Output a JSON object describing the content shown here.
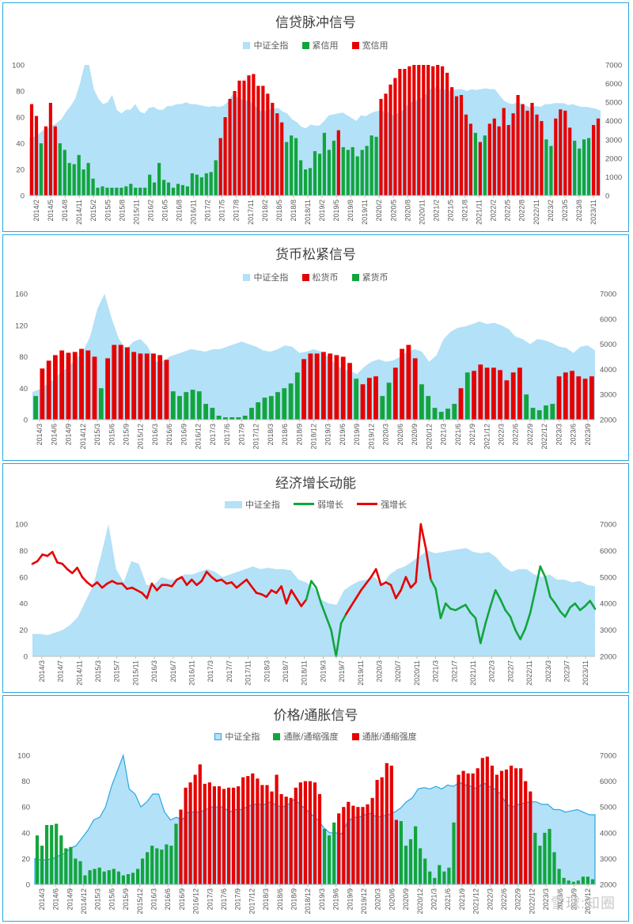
{
  "colors": {
    "area": "#b3e1f7",
    "areaStroke": "#29a8e0",
    "red": "#e60000",
    "green": "#12a53c"
  },
  "watermark": "雪球:知圈",
  "chart_data": [
    {
      "type": "bar",
      "title": "信贷脉冲信号",
      "legend": [
        "中证全指",
        "紧信用",
        "宽信用"
      ],
      "y_left": [
        0,
        100
      ],
      "y_left_ticks": [
        0,
        20,
        40,
        60,
        80,
        100
      ],
      "y_right": [
        0,
        7000
      ],
      "y_right_ticks": [
        0,
        1000,
        2000,
        3000,
        4000,
        5000,
        6000,
        7000
      ],
      "x_tick_labels": [
        "2014/2",
        "2014/5",
        "2014/8",
        "2014/11",
        "2015/2",
        "2015/5",
        "2015/8",
        "2015/11",
        "2016/2",
        "2016/5",
        "2016/8",
        "2016/11",
        "2017/2",
        "2017/5",
        "2017/8",
        "2017/11",
        "2018/2",
        "2018/5",
        "2018/8",
        "2018/11",
        "2019/2",
        "2019/5",
        "2019/8",
        "2019/11",
        "2020/2",
        "2020/5",
        "2020/8",
        "2020/11",
        "2021/2",
        "2021/5",
        "2021/8",
        "2021/11",
        "2022/2",
        "2022/5",
        "2022/8",
        "2022/11",
        "2023/2",
        "2023/5",
        "2023/8",
        "2023/11"
      ],
      "series_area": {
        "name": "中证全指",
        "values": [
          3100,
          3150,
          3300,
          3500,
          3600,
          3750,
          3900,
          4100,
          4500,
          4800,
          5200,
          6000,
          7000,
          7050,
          5700,
          5200,
          4900,
          5000,
          5400,
          4600,
          4400,
          4600,
          4600,
          4900,
          4500,
          4400,
          4700,
          4750,
          4600,
          4600,
          4800,
          4800,
          4900,
          4900,
          5000,
          4900,
          4900,
          4850,
          4800,
          4750,
          4800,
          4750,
          4800,
          5000,
          5400,
          5300,
          5150,
          5100,
          5000,
          4800,
          4550,
          4500,
          4600,
          4650,
          4700,
          4500,
          4400,
          4100,
          3950,
          3700,
          3600,
          3800,
          3750,
          3750,
          4000,
          4300,
          4350,
          4400,
          4450,
          4300,
          4150,
          4000,
          4300,
          4250,
          4400,
          4500,
          4550,
          4500,
          4450,
          4300,
          4400,
          4550,
          4850,
          5000,
          5100,
          5200,
          5400,
          5700,
          5800,
          5700,
          5700,
          5600,
          5650,
          5700,
          5700,
          5600,
          5700,
          5650,
          5700,
          5750,
          5700,
          5700,
          5400,
          5100,
          4950,
          4900,
          5000,
          4900,
          4800,
          4700,
          4800,
          4750,
          4900,
          4900,
          4950,
          4950,
          4950,
          4850,
          4900,
          4800,
          4750,
          4750,
          4700,
          4650,
          4550
        ]
      },
      "bars": [
        70,
        61,
        40,
        53,
        71,
        53,
        40,
        35,
        25,
        24,
        31,
        20,
        25,
        13,
        6,
        7,
        6,
        6,
        6,
        6,
        7,
        9,
        6,
        6,
        6,
        16,
        10,
        25,
        12,
        10,
        6,
        9,
        8,
        7,
        17,
        16,
        14,
        17,
        18,
        27,
        44,
        60,
        74,
        80,
        88,
        88,
        92,
        93,
        84,
        84,
        78,
        71,
        63,
        56,
        41,
        46,
        44,
        27,
        20,
        21,
        34,
        32,
        48,
        35,
        42,
        50,
        37,
        35,
        37,
        30,
        35,
        38,
        46,
        45,
        74,
        78,
        85,
        90,
        97,
        97,
        99,
        100,
        100,
        100,
        100,
        99,
        100,
        99,
        94,
        83,
        76,
        77,
        62,
        55,
        48,
        41,
        46,
        55,
        59,
        53,
        67,
        54,
        63,
        77,
        70,
        65,
        71,
        62,
        57,
        43,
        38,
        59,
        66,
        65,
        52,
        42,
        36,
        43,
        44,
        54,
        59
      ],
      "bar_series": {
        "red_on": [
          0,
          1,
          3,
          4,
          5,
          40,
          41,
          42,
          43,
          44,
          45,
          46,
          47,
          48,
          49,
          50,
          51,
          52,
          53,
          65,
          74,
          75,
          76,
          77,
          78,
          79,
          80,
          81,
          82,
          83,
          84,
          85,
          86,
          87,
          88,
          89,
          90,
          91,
          92,
          93,
          95,
          97,
          98,
          99,
          100,
          101,
          102,
          103,
          104,
          105,
          106,
          107,
          108,
          111,
          112,
          113,
          114,
          119,
          120
        ]
      }
    },
    {
      "type": "bar",
      "title": "货币松紧信号",
      "legend": [
        "中证全指",
        "松货币",
        "紧货币"
      ],
      "y_left": [
        0,
        160
      ],
      "y_left_ticks": [
        0,
        40,
        80,
        120,
        160
      ],
      "y_right": [
        2000,
        7000
      ],
      "y_right_ticks": [
        2000,
        3000,
        4000,
        5000,
        6000,
        7000
      ],
      "x_tick_labels": [
        "2014/3",
        "2014/6",
        "2014/9",
        "2014/12",
        "2015/3",
        "2015/6",
        "2015/9",
        "2015/12",
        "2016/3",
        "2016/6",
        "2016/9",
        "2016/12",
        "2017/3",
        "2017/6",
        "2017/9",
        "2017/12",
        "2018/3",
        "2018/6",
        "2018/9",
        "2018/12",
        "2019/3",
        "2019/6",
        "2019/9",
        "2019/12",
        "2020/3",
        "2020/6",
        "2020/9",
        "2020/12",
        "2021/3",
        "2021/6",
        "2021/9",
        "2021/12",
        "2022/3",
        "2022/6",
        "2022/9",
        "2022/12",
        "2023/3",
        "2023/6",
        "2023/9"
      ],
      "series_area": {
        "name": "中证全指",
        "values": [
          3100,
          3200,
          3400,
          3600,
          3900,
          4100,
          4400,
          4700,
          5300,
          6400,
          7000,
          6000,
          5200,
          4800,
          5100,
          5200,
          4900,
          4300,
          4300,
          4500,
          4600,
          4700,
          4800,
          4750,
          4700,
          4800,
          4800,
          4900,
          5000,
          5100,
          5000,
          4900,
          4750,
          4700,
          4800,
          4950,
          4900,
          4650,
          4700,
          4800,
          4700,
          4500,
          4200,
          4000,
          3950,
          3800,
          4100,
          4300,
          4400,
          4300,
          4350,
          4500,
          4700,
          4800,
          4700,
          4300,
          4550,
          5200,
          5500,
          5650,
          5700,
          5800,
          5900,
          5800,
          5850,
          5750,
          5600,
          5300,
          5200,
          5000,
          5200,
          5150,
          5050,
          4900,
          4850,
          4650,
          4900,
          4950,
          4750
        ]
      },
      "bars": [
        30,
        65,
        75,
        82,
        88,
        85,
        86,
        90,
        88,
        80,
        40,
        78,
        95,
        95,
        92,
        86,
        84,
        84,
        84,
        82,
        76,
        36,
        30,
        35,
        38,
        36,
        20,
        15,
        5,
        3,
        3,
        3,
        5,
        15,
        22,
        28,
        30,
        35,
        40,
        46,
        60,
        77,
        84,
        84,
        86,
        84,
        82,
        80,
        72,
        52,
        45,
        53,
        55,
        30,
        47,
        66,
        90,
        95,
        78,
        45,
        30,
        15,
        10,
        14,
        20,
        40,
        60,
        62,
        70,
        66,
        66,
        63,
        50,
        60,
        66,
        32,
        15,
        12,
        18,
        20,
        55,
        60,
        62,
        55,
        52,
        55
      ],
      "bar_series": {
        "red_on": [
          1,
          2,
          3,
          4,
          5,
          6,
          7,
          8,
          9,
          11,
          12,
          13,
          14,
          15,
          16,
          17,
          18,
          19,
          20,
          41,
          42,
          43,
          44,
          45,
          46,
          47,
          48,
          50,
          51,
          52,
          55,
          56,
          57,
          58,
          65,
          67,
          68,
          69,
          70,
          71,
          72,
          73,
          74,
          80,
          81,
          82,
          83,
          84,
          85
        ]
      }
    },
    {
      "type": "line",
      "title": "经济增长动能",
      "legend": [
        "中证全指",
        "弱增长",
        "强增长"
      ],
      "y_left": [
        0,
        100
      ],
      "y_left_ticks": [
        0,
        20,
        40,
        60,
        80,
        100
      ],
      "y_right": [
        2000,
        7000
      ],
      "y_right_ticks": [
        2000,
        3000,
        4000,
        5000,
        6000,
        7000
      ],
      "x_tick_labels": [
        "2014/3",
        "2014/7",
        "2014/11",
        "2015/3",
        "2015/7",
        "2015/11",
        "2016/3",
        "2016/7",
        "2016/11",
        "2017/3",
        "2017/7",
        "2017/11",
        "2018/3",
        "2018/7",
        "2018/11",
        "2019/3",
        "2019/7",
        "2019/11",
        "2020/3",
        "2020/7",
        "2020/11",
        "2021/3",
        "2021/7",
        "2021/11",
        "2022/3",
        "2022/7",
        "2022/11",
        "2023/3",
        "2023/7",
        "2023/11"
      ],
      "series_area": {
        "name": "中证全指",
        "values": [
          2850,
          2850,
          2800,
          2900,
          3000,
          3200,
          3500,
          4100,
          4700,
          5800,
          7000,
          5300,
          4800,
          5600,
          5500,
          4700,
          4700,
          5000,
          4900,
          4900,
          5100,
          5100,
          5200,
          5300,
          5200,
          5000,
          5100,
          5200,
          5300,
          5400,
          5300,
          5350,
          5300,
          5300,
          5250,
          4900,
          4800,
          4600,
          4150,
          4000,
          3950,
          4500,
          4700,
          4850,
          4900,
          5000,
          4700,
          5100,
          5300,
          5400,
          5600,
          5800,
          6000,
          5900,
          5950,
          6000,
          6050,
          6100,
          5950,
          5900,
          5950,
          5750,
          5400,
          5200,
          5300,
          5300,
          5100,
          5000,
          5100,
          4900,
          4900,
          4800,
          4850,
          4700,
          4650
        ]
      },
      "line": [
        70,
        72,
        77,
        76,
        79,
        71,
        70,
        66,
        63,
        67,
        60,
        56,
        53,
        56,
        52,
        55,
        57,
        55,
        55,
        51,
        52,
        50,
        48,
        44,
        55,
        50,
        54,
        54,
        53,
        58,
        60,
        54,
        58,
        54,
        57,
        64,
        60,
        57,
        58,
        55,
        56,
        52,
        55,
        58,
        53,
        48,
        47,
        45,
        50,
        48,
        53,
        40,
        50,
        44,
        38,
        43,
        57,
        52,
        40,
        30,
        20,
        0,
        25,
        32,
        38,
        44,
        50,
        55,
        60,
        66,
        54,
        56,
        54,
        44,
        50,
        60,
        52,
        56,
        100,
        82,
        58,
        51,
        29,
        40,
        36,
        35,
        37,
        39,
        33,
        29,
        10,
        25,
        38,
        50,
        43,
        35,
        30,
        20,
        13,
        21,
        33,
        50,
        68,
        60,
        45,
        40,
        34,
        30,
        37,
        40,
        35,
        38,
        42,
        36
      ],
      "line_strong_ranges": [
        [
          0,
          55
        ],
        [
          63,
          80
        ]
      ]
    },
    {
      "type": "bar",
      "title": "价格/通胀信号",
      "legend": [
        "中证全指",
        "通胀/通缩强度",
        "通胀/通缩强度"
      ],
      "y_left": [
        0,
        100
      ],
      "y_left_ticks": [
        0,
        20,
        40,
        60,
        80,
        100
      ],
      "y_right": [
        2000,
        7000
      ],
      "y_right_ticks": [
        2000,
        3000,
        4000,
        5000,
        6000,
        7000
      ],
      "x_tick_labels": [
        "2014/3",
        "2014/6",
        "2014/9",
        "2014/12",
        "2015/3",
        "2015/6",
        "2015/9",
        "2015/12",
        "2016/3",
        "2016/6",
        "2016/9",
        "2016/12",
        "2017/3",
        "2017/6",
        "2017/9",
        "2017/12",
        "2018/3",
        "2018/6",
        "2018/9",
        "2018/12",
        "2019/3",
        "2019/6",
        "2019/9",
        "2019/12",
        "2020/3",
        "2020/6",
        "2020/9",
        "2020/12",
        "2021/3",
        "2021/6",
        "2021/9",
        "2021/12",
        "2022/3",
        "2022/6",
        "2022/9",
        "2022/12",
        "2023/3",
        "2023/6",
        "2023/9",
        "2023/12"
      ],
      "series_area": {
        "name": "中证全指",
        "values": [
          3000,
          2950,
          2950,
          3000,
          3100,
          3200,
          3400,
          3500,
          3800,
          4100,
          4500,
          4600,
          5000,
          5800,
          6400,
          7050,
          5700,
          5500,
          5000,
          5200,
          5500,
          5500,
          4800,
          4500,
          4600,
          4500,
          4800,
          4800,
          4800,
          4900,
          5000,
          5000,
          5000,
          4800,
          4900,
          4900,
          5000,
          5100,
          5100,
          5100,
          5200,
          5050,
          5000,
          5100,
          5300,
          5100,
          4900,
          4700,
          4500,
          4200,
          4000,
          4000,
          3950,
          4400,
          4600,
          4600,
          4700,
          4750,
          4600,
          4650,
          4700,
          4800,
          4950,
          5200,
          5350,
          5700,
          5750,
          5700,
          5800,
          5700,
          5850,
          5800,
          5950,
          5850,
          5800,
          5700,
          5950,
          5800,
          5700,
          5500,
          5100,
          5000,
          5100,
          5150,
          5200,
          5200,
          5100,
          5100,
          4900,
          4900,
          4800,
          4850,
          4900,
          4800,
          4700,
          4700
        ]
      },
      "bars": [
        38,
        30,
        46,
        46,
        47,
        38,
        28,
        29,
        20,
        18,
        7,
        11,
        12,
        13,
        10,
        11,
        12,
        10,
        7,
        8,
        9,
        12,
        20,
        25,
        30,
        28,
        27,
        31,
        30,
        47,
        58,
        75,
        79,
        85,
        93,
        78,
        79,
        76,
        76,
        74,
        75,
        75,
        76,
        83,
        84,
        86,
        82,
        77,
        77,
        72,
        85,
        70,
        68,
        67,
        75,
        79,
        80,
        80,
        79,
        70,
        43,
        38,
        48,
        55,
        60,
        64,
        61,
        60,
        60,
        62,
        67,
        81,
        83,
        94,
        92,
        50,
        49,
        30,
        35,
        45,
        28,
        20,
        10,
        5,
        15,
        10,
        13,
        48,
        85,
        88,
        86,
        86,
        90,
        98,
        99,
        92,
        85,
        88,
        89,
        92,
        90,
        90,
        80,
        72,
        40,
        30,
        40,
        43,
        25,
        12,
        5,
        3,
        2,
        3,
        6,
        6,
        4
      ]
    }
  ]
}
